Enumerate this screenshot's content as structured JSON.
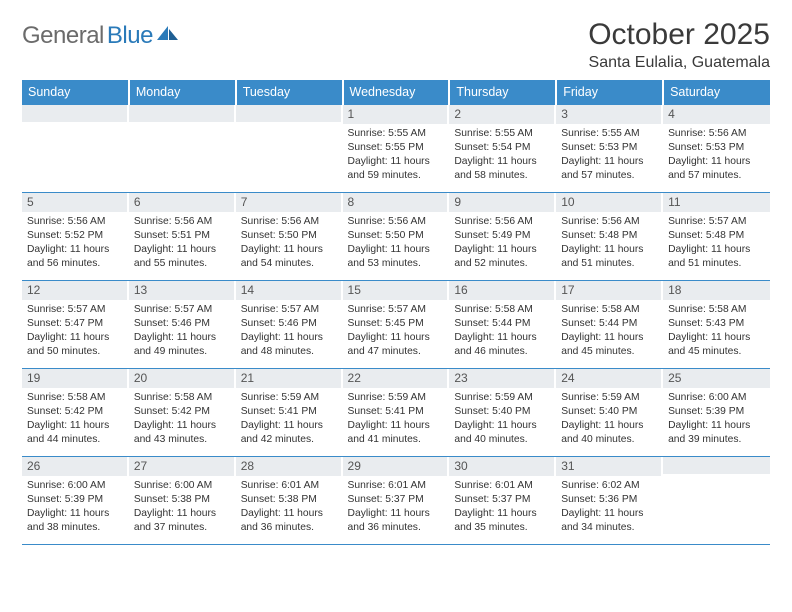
{
  "logo": {
    "text1": "General",
    "text2": "Blue"
  },
  "title": "October 2025",
  "location": "Santa Eulalia, Guatemala",
  "colors": {
    "header_bg": "#3a8bc9",
    "header_text": "#ffffff",
    "daynum_bg": "#e9ecef",
    "border": "#3a8bc9",
    "logo_gray": "#6b6b6b",
    "logo_blue": "#2a7ab9"
  },
  "weekdays": [
    "Sunday",
    "Monday",
    "Tuesday",
    "Wednesday",
    "Thursday",
    "Friday",
    "Saturday"
  ],
  "weeks": [
    [
      {
        "n": "",
        "lines": [
          "",
          "",
          "",
          ""
        ]
      },
      {
        "n": "",
        "lines": [
          "",
          "",
          "",
          ""
        ]
      },
      {
        "n": "",
        "lines": [
          "",
          "",
          "",
          ""
        ]
      },
      {
        "n": "1",
        "lines": [
          "Sunrise: 5:55 AM",
          "Sunset: 5:55 PM",
          "Daylight: 11 hours",
          "and 59 minutes."
        ]
      },
      {
        "n": "2",
        "lines": [
          "Sunrise: 5:55 AM",
          "Sunset: 5:54 PM",
          "Daylight: 11 hours",
          "and 58 minutes."
        ]
      },
      {
        "n": "3",
        "lines": [
          "Sunrise: 5:55 AM",
          "Sunset: 5:53 PM",
          "Daylight: 11 hours",
          "and 57 minutes."
        ]
      },
      {
        "n": "4",
        "lines": [
          "Sunrise: 5:56 AM",
          "Sunset: 5:53 PM",
          "Daylight: 11 hours",
          "and 57 minutes."
        ]
      }
    ],
    [
      {
        "n": "5",
        "lines": [
          "Sunrise: 5:56 AM",
          "Sunset: 5:52 PM",
          "Daylight: 11 hours",
          "and 56 minutes."
        ]
      },
      {
        "n": "6",
        "lines": [
          "Sunrise: 5:56 AM",
          "Sunset: 5:51 PM",
          "Daylight: 11 hours",
          "and 55 minutes."
        ]
      },
      {
        "n": "7",
        "lines": [
          "Sunrise: 5:56 AM",
          "Sunset: 5:50 PM",
          "Daylight: 11 hours",
          "and 54 minutes."
        ]
      },
      {
        "n": "8",
        "lines": [
          "Sunrise: 5:56 AM",
          "Sunset: 5:50 PM",
          "Daylight: 11 hours",
          "and 53 minutes."
        ]
      },
      {
        "n": "9",
        "lines": [
          "Sunrise: 5:56 AM",
          "Sunset: 5:49 PM",
          "Daylight: 11 hours",
          "and 52 minutes."
        ]
      },
      {
        "n": "10",
        "lines": [
          "Sunrise: 5:56 AM",
          "Sunset: 5:48 PM",
          "Daylight: 11 hours",
          "and 51 minutes."
        ]
      },
      {
        "n": "11",
        "lines": [
          "Sunrise: 5:57 AM",
          "Sunset: 5:48 PM",
          "Daylight: 11 hours",
          "and 51 minutes."
        ]
      }
    ],
    [
      {
        "n": "12",
        "lines": [
          "Sunrise: 5:57 AM",
          "Sunset: 5:47 PM",
          "Daylight: 11 hours",
          "and 50 minutes."
        ]
      },
      {
        "n": "13",
        "lines": [
          "Sunrise: 5:57 AM",
          "Sunset: 5:46 PM",
          "Daylight: 11 hours",
          "and 49 minutes."
        ]
      },
      {
        "n": "14",
        "lines": [
          "Sunrise: 5:57 AM",
          "Sunset: 5:46 PM",
          "Daylight: 11 hours",
          "and 48 minutes."
        ]
      },
      {
        "n": "15",
        "lines": [
          "Sunrise: 5:57 AM",
          "Sunset: 5:45 PM",
          "Daylight: 11 hours",
          "and 47 minutes."
        ]
      },
      {
        "n": "16",
        "lines": [
          "Sunrise: 5:58 AM",
          "Sunset: 5:44 PM",
          "Daylight: 11 hours",
          "and 46 minutes."
        ]
      },
      {
        "n": "17",
        "lines": [
          "Sunrise: 5:58 AM",
          "Sunset: 5:44 PM",
          "Daylight: 11 hours",
          "and 45 minutes."
        ]
      },
      {
        "n": "18",
        "lines": [
          "Sunrise: 5:58 AM",
          "Sunset: 5:43 PM",
          "Daylight: 11 hours",
          "and 45 minutes."
        ]
      }
    ],
    [
      {
        "n": "19",
        "lines": [
          "Sunrise: 5:58 AM",
          "Sunset: 5:42 PM",
          "Daylight: 11 hours",
          "and 44 minutes."
        ]
      },
      {
        "n": "20",
        "lines": [
          "Sunrise: 5:58 AM",
          "Sunset: 5:42 PM",
          "Daylight: 11 hours",
          "and 43 minutes."
        ]
      },
      {
        "n": "21",
        "lines": [
          "Sunrise: 5:59 AM",
          "Sunset: 5:41 PM",
          "Daylight: 11 hours",
          "and 42 minutes."
        ]
      },
      {
        "n": "22",
        "lines": [
          "Sunrise: 5:59 AM",
          "Sunset: 5:41 PM",
          "Daylight: 11 hours",
          "and 41 minutes."
        ]
      },
      {
        "n": "23",
        "lines": [
          "Sunrise: 5:59 AM",
          "Sunset: 5:40 PM",
          "Daylight: 11 hours",
          "and 40 minutes."
        ]
      },
      {
        "n": "24",
        "lines": [
          "Sunrise: 5:59 AM",
          "Sunset: 5:40 PM",
          "Daylight: 11 hours",
          "and 40 minutes."
        ]
      },
      {
        "n": "25",
        "lines": [
          "Sunrise: 6:00 AM",
          "Sunset: 5:39 PM",
          "Daylight: 11 hours",
          "and 39 minutes."
        ]
      }
    ],
    [
      {
        "n": "26",
        "lines": [
          "Sunrise: 6:00 AM",
          "Sunset: 5:39 PM",
          "Daylight: 11 hours",
          "and 38 minutes."
        ]
      },
      {
        "n": "27",
        "lines": [
          "Sunrise: 6:00 AM",
          "Sunset: 5:38 PM",
          "Daylight: 11 hours",
          "and 37 minutes."
        ]
      },
      {
        "n": "28",
        "lines": [
          "Sunrise: 6:01 AM",
          "Sunset: 5:38 PM",
          "Daylight: 11 hours",
          "and 36 minutes."
        ]
      },
      {
        "n": "29",
        "lines": [
          "Sunrise: 6:01 AM",
          "Sunset: 5:37 PM",
          "Daylight: 11 hours",
          "and 36 minutes."
        ]
      },
      {
        "n": "30",
        "lines": [
          "Sunrise: 6:01 AM",
          "Sunset: 5:37 PM",
          "Daylight: 11 hours",
          "and 35 minutes."
        ]
      },
      {
        "n": "31",
        "lines": [
          "Sunrise: 6:02 AM",
          "Sunset: 5:36 PM",
          "Daylight: 11 hours",
          "and 34 minutes."
        ]
      },
      {
        "n": "",
        "lines": [
          "",
          "",
          "",
          ""
        ]
      }
    ]
  ]
}
